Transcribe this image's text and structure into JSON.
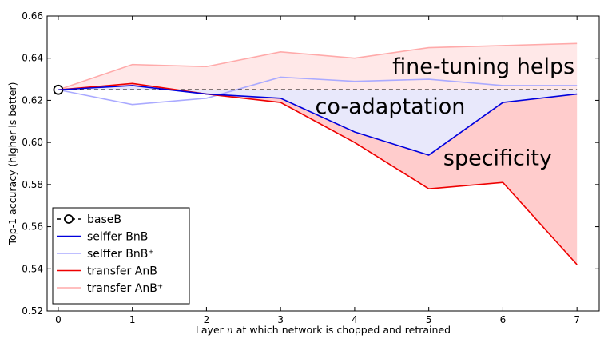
{
  "chart_data": {
    "type": "line",
    "xlabel": "Layer n at which network is chopped and retrained",
    "ylabel": "Top-1 accuracy (higher is better)",
    "xlim": [
      -0.15,
      7.3
    ],
    "ylim": [
      0.52,
      0.66
    ],
    "x_ticks": [
      "0",
      "1",
      "2",
      "3",
      "4",
      "5",
      "6",
      "7"
    ],
    "y_ticks": [
      "0.52",
      "0.54",
      "0.56",
      "0.58",
      "0.60",
      "0.62",
      "0.64",
      "0.66"
    ],
    "grid": false,
    "legend_position": "lower-left",
    "series": [
      {
        "name": "baseB",
        "color": "#000000",
        "style": "dashed-with-open-circle",
        "x": [
          0,
          7
        ],
        "y": [
          0.625,
          0.625
        ]
      },
      {
        "name": "selffer BnB",
        "color": "#0000dd",
        "style": "solid",
        "x": [
          0,
          1,
          2,
          3,
          4,
          5,
          6,
          7
        ],
        "y": [
          0.625,
          0.627,
          0.623,
          0.621,
          0.605,
          0.594,
          0.619,
          0.623
        ]
      },
      {
        "name": "selffer BnB⁺",
        "color": "#aaaaff",
        "style": "solid",
        "x": [
          0,
          1,
          2,
          3,
          4,
          5,
          6,
          7
        ],
        "y": [
          0.625,
          0.618,
          0.621,
          0.631,
          0.629,
          0.63,
          0.627,
          0.627
        ]
      },
      {
        "name": "transfer AnB",
        "color": "#ee0000",
        "style": "solid",
        "x": [
          0,
          1,
          2,
          3,
          4,
          5,
          6,
          7
        ],
        "y": [
          0.625,
          0.628,
          0.623,
          0.619,
          0.6,
          0.578,
          0.581,
          0.542
        ]
      },
      {
        "name": "transfer AnB⁺",
        "color": "#ffaaaa",
        "style": "solid",
        "x": [
          0,
          1,
          2,
          3,
          4,
          5,
          6,
          7
        ],
        "y": [
          0.625,
          0.637,
          0.636,
          0.643,
          0.64,
          0.645,
          0.646,
          0.647
        ]
      }
    ],
    "shaded_regions": [
      {
        "label": "fine-tuning helps",
        "between": [
          "baseB",
          "transfer AnB⁺"
        ],
        "color": "#ffe8e8"
      },
      {
        "label": "co-adaptation",
        "between": [
          "baseB",
          "selffer BnB"
        ],
        "color": "#e8e8fb"
      },
      {
        "label": "specificity",
        "between": [
          "selffer BnB",
          "transfer AnB"
        ],
        "color": "#ffcccc"
      }
    ],
    "annotations": [
      {
        "text": "fine-tuning helps",
        "x": 7,
        "y": 0.6365
      },
      {
        "text": "co-adaptation",
        "x": 4.48,
        "y": 0.6175
      },
      {
        "text": "specificity",
        "x": 5.93,
        "y": 0.593
      }
    ]
  }
}
